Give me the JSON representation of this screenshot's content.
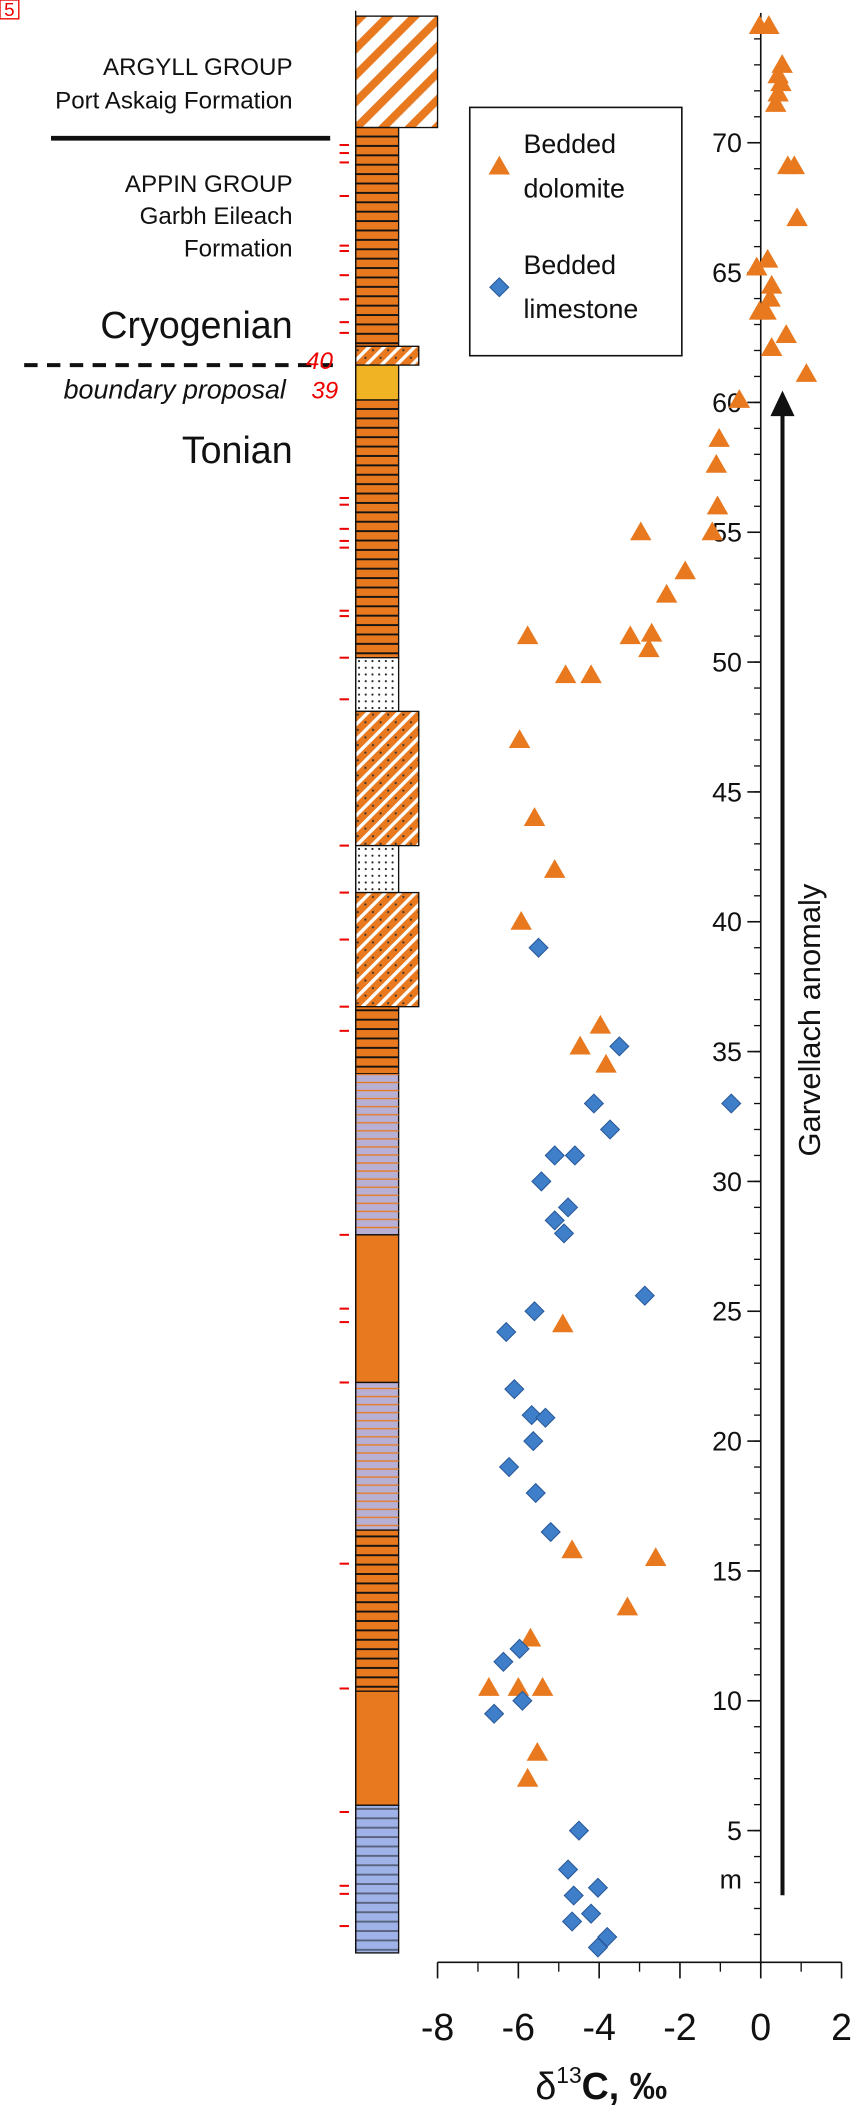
{
  "chart_data": {
    "type": "scatter",
    "xlim": [
      -8,
      2
    ],
    "xticks": [
      -8,
      -6,
      -4,
      -2,
      0,
      2
    ],
    "ylim": [
      0,
      75
    ],
    "yticks": [
      5,
      10,
      15,
      20,
      25,
      30,
      35,
      40,
      45,
      50,
      55,
      60,
      65,
      70
    ],
    "ylabel": "m",
    "xlabel": {
      "delta": "δ",
      "sup": "13",
      "rest": "C,  ‰"
    },
    "series": [
      {
        "name": "Bedded dolomite",
        "color": "#e8791f",
        "marker": "triangle",
        "x": [
          -0.03,
          0.2,
          0.53,
          0.43,
          0.5,
          0.43,
          0.37,
          0.67,
          0.83,
          0.9,
          0.17,
          -0.1,
          0.27,
          0.23,
          0.13,
          -0.03,
          0.63,
          0.27,
          1.13,
          -0.53,
          -1.03,
          -1.1,
          -1.07,
          -1.2,
          -2.97,
          -1.87,
          -2.33,
          -5.77,
          -3.23,
          -2.7,
          -2.77,
          -4.83,
          -4.2,
          -5.97,
          -5.6,
          -5.1,
          -5.93,
          -3.97,
          -4.47,
          -3.83,
          -4.9,
          -4.67,
          -2.6,
          -3.3,
          -5.7,
          -6.73,
          -6.0,
          -5.4,
          -5.53,
          -5.77
        ],
        "y": [
          74.5,
          74.5,
          73.0,
          72.6,
          72.3,
          71.9,
          71.5,
          69.1,
          69.1,
          67.1,
          65.5,
          65.2,
          64.5,
          64.0,
          63.5,
          63.5,
          62.6,
          62.1,
          61.1,
          60.1,
          58.6,
          57.6,
          56.0,
          55.0,
          55.0,
          53.5,
          52.6,
          51.0,
          51.0,
          51.1,
          50.5,
          49.5,
          49.5,
          47.0,
          44.0,
          42.0,
          40.0,
          36.0,
          35.2,
          34.5,
          24.5,
          15.8,
          15.5,
          13.6,
          12.4,
          10.5,
          10.5,
          10.5,
          8.0,
          7.0
        ]
      },
      {
        "name": "Bedded limestone",
        "color": "#3f7fca",
        "marker": "diamond",
        "x": [
          -5.5,
          -3.5,
          -4.13,
          -0.73,
          -3.73,
          -5.1,
          -4.6,
          -5.43,
          -4.77,
          -5.1,
          -4.87,
          -5.6,
          -2.87,
          -6.3,
          -6.1,
          -5.67,
          -5.33,
          -5.63,
          -6.23,
          -5.57,
          -5.2,
          -5.97,
          -6.37,
          -5.9,
          -6.6,
          -4.5,
          -4.77,
          -4.03,
          -4.63,
          -4.2,
          -4.67,
          -3.8,
          -4.03
        ],
        "y": [
          39.0,
          35.2,
          33.0,
          33.0,
          32.0,
          31.0,
          31.0,
          30.0,
          29.0,
          28.5,
          28.0,
          25.0,
          25.6,
          24.2,
          22.0,
          21.0,
          20.9,
          20.0,
          19.0,
          18.0,
          16.5,
          12.0,
          11.5,
          10.0,
          9.5,
          5.0,
          3.5,
          2.8,
          2.5,
          1.8,
          1.5,
          0.9,
          0.5
        ]
      }
    ],
    "annotations": {
      "panel": "5",
      "argyll": "ARGYLL GROUP",
      "port_askaig": "Port Askaig Formation",
      "appin": "APPIN GROUP",
      "garbh": "Garbh Eileach",
      "formation": "Formation",
      "cryogenian": "Cryogenian",
      "boundary": "boundary proposal",
      "tonian": "Tonian",
      "bed40": "40",
      "bed39": "39",
      "anomaly": "Garvellach anomaly"
    }
  }
}
